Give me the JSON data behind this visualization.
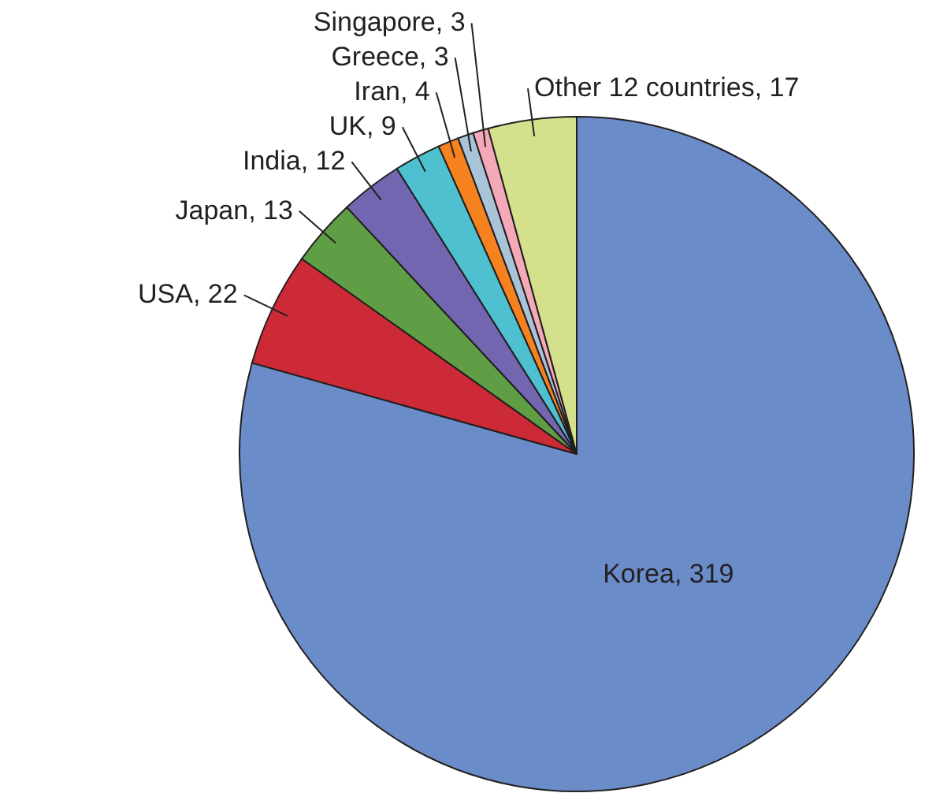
{
  "chart_data": {
    "type": "pie",
    "categories": [
      "Korea",
      "USA",
      "Japan",
      "India",
      "UK",
      "Iran",
      "Greece",
      "Singapore",
      "Other 12 countries"
    ],
    "values": [
      319,
      22,
      13,
      12,
      9,
      4,
      3,
      3,
      17
    ],
    "value_labels": [
      ", 319",
      ", 22",
      ", 13",
      ", 12",
      ", 9",
      ", 4",
      ", 3",
      ", 3",
      ", 17"
    ],
    "colors": [
      "#6a8cc8",
      "#cc2a36",
      "#5f9e45",
      "#7266b0",
      "#4ec0d0",
      "#f5821f",
      "#a9c3d8",
      "#f4a9b8",
      "#d5e08c"
    ]
  }
}
